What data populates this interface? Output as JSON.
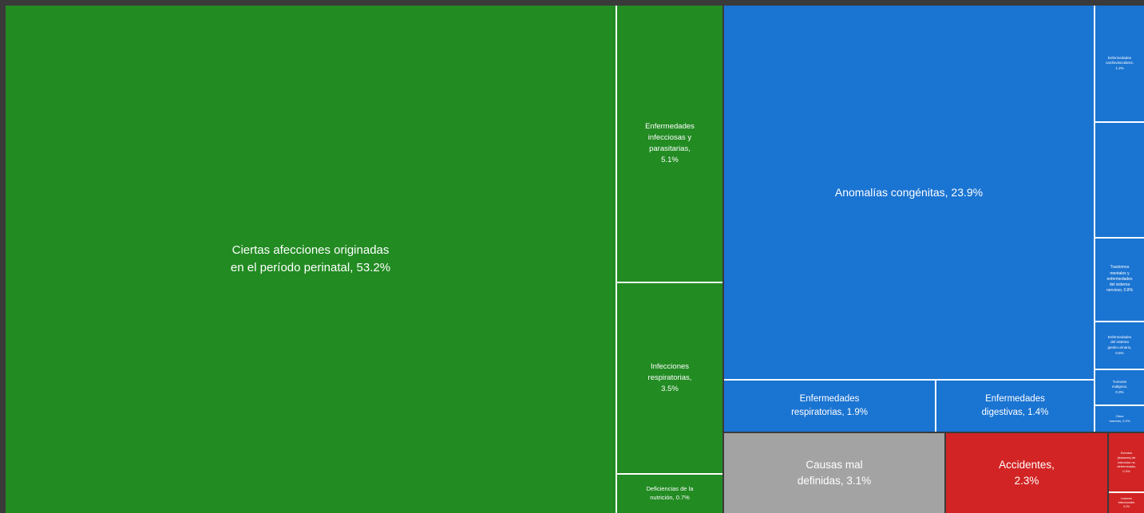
{
  "chart_data": {
    "type": "treemap",
    "colors": {
      "green": "#228b22",
      "blue": "#1a74d2",
      "gray": "#a3a3a3",
      "red": "#d22424"
    },
    "items": [
      {
        "id": "perinatal",
        "group": "green",
        "label": "Ciertas afecciones originadas\nen el período perinatal, 53.2%",
        "value": 53.2
      },
      {
        "id": "infecciosas",
        "group": "green",
        "label": "Enfermedades\ninfecciosas y\nparasitarias,\n5.1%",
        "value": 5.1
      },
      {
        "id": "respiratorias-inf",
        "group": "green",
        "label": "Infecciones\nrespiratorias,\n3.5%",
        "value": 3.5
      },
      {
        "id": "nutricion",
        "group": "green",
        "label": "Deficiencias de la\nnutrición, 0.7%",
        "value": 0.7
      },
      {
        "id": "congenitas",
        "group": "blue",
        "label": "Anomalías congénitas, 23.9%",
        "value": 23.9
      },
      {
        "id": "enf-respiratorias",
        "group": "blue",
        "label": "Enfermedades\nrespiratorias, 1.9%",
        "value": 1.9
      },
      {
        "id": "enf-digestivas",
        "group": "blue",
        "label": "Enfermedades\ndigestivas, 1.4%",
        "value": 1.4
      },
      {
        "id": "cardiovasculares",
        "group": "blue",
        "label": "Enfermedades\ncardiovasculares,\n1.2%",
        "value": 1.2
      },
      {
        "id": "endocrinas",
        "group": "blue",
        "label": "",
        "value": null
      },
      {
        "id": "mentales",
        "group": "blue",
        "label": "Trastornos\nmentales y\nenfermedades\ndel sistema\nnervioso, 0.8%",
        "value": 0.8
      },
      {
        "id": "genitourinario",
        "group": "blue",
        "label": "Enfermedades\ndel sistema\ngenito-urinario,\n0.5%",
        "value": 0.5
      },
      {
        "id": "tumores-malignos",
        "group": "blue",
        "label": "Tumores\nmalignos,\n0.3%",
        "value": 0.3
      },
      {
        "id": "otros-tumores",
        "group": "blue",
        "label": "Otros\ntumores, 0.2%",
        "value": 0.2
      },
      {
        "id": "mal-definidas",
        "group": "gray",
        "label": "Causas mal\ndefinidas, 3.1%",
        "value": 3.1
      },
      {
        "id": "accidentes",
        "group": "red",
        "label": "Accidentes,\n2.3%",
        "value": 2.3
      },
      {
        "id": "eventos-intencion",
        "group": "red",
        "label": "Eventos\n(lesiones) de\nintención no\ndeterminada,\n0.3%",
        "value": 0.3
      },
      {
        "id": "lesiones-intencionales",
        "group": "red",
        "label": "Lesiones\nintencionales\n0.2%",
        "value": 0.2
      }
    ]
  }
}
